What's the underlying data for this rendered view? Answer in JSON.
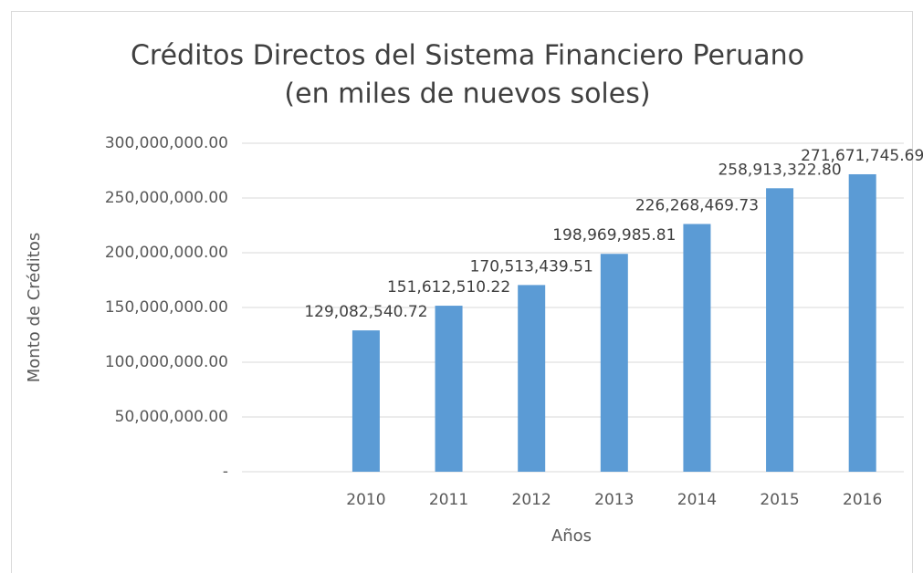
{
  "chart_data": {
    "type": "bar",
    "title": "Créditos Directos del Sistema Financiero Peruano",
    "subtitle": "(en miles de nuevos soles)",
    "x_label": "Años",
    "y_label": "Monto de Créditos",
    "categories": [
      null,
      "2010",
      "2011",
      "2012",
      "2013",
      "2014",
      "2015",
      "2016"
    ],
    "values": [
      null,
      129082540.72,
      151612510.22,
      170513439.51,
      198969985.81,
      226268469.73,
      258913322.8,
      271671745.69
    ],
    "value_labels": [
      null,
      "129,082,540.72",
      "151,612,510.22",
      "170,513,439.51",
      "198,969,985.81",
      "226,268,469.73",
      "258,913,322.80",
      "271,671,745.69"
    ],
    "color": "#5b9bd5",
    "ylim": [
      0,
      300000000
    ],
    "yticks": [
      {
        "value": 0,
        "label": "-"
      },
      {
        "value": 50000000,
        "label": "50,000,000.00"
      },
      {
        "value": 100000000,
        "label": "100,000,000.00"
      },
      {
        "value": 150000000,
        "label": "150,000,000.00"
      },
      {
        "value": 200000000,
        "label": "200,000,000.00"
      },
      {
        "value": 250000000,
        "label": "250,000,000.00"
      },
      {
        "value": 300000000,
        "label": "300,000,000.00"
      }
    ],
    "grid": true
  }
}
